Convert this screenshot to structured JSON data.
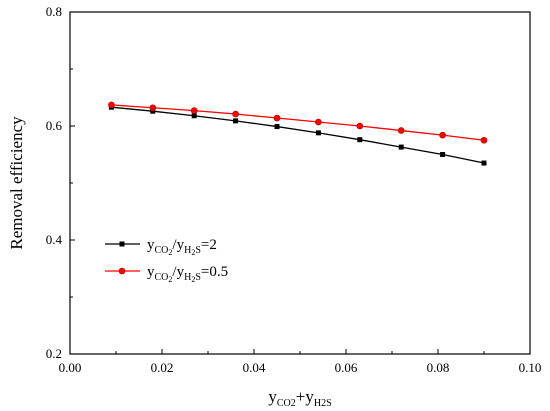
{
  "chart_data": {
    "type": "line",
    "xlabel": {
      "y1": "y",
      "s1": "CO2",
      "plus": "+",
      "y2": "y",
      "s2": "H2S"
    },
    "ylabel": "Removal efficiency",
    "xlim": [
      0.0,
      0.1
    ],
    "ylim": [
      0.2,
      0.8
    ],
    "xticks": [
      "0.00",
      "0.02",
      "0.04",
      "0.06",
      "0.08",
      "0.10"
    ],
    "yticks": [
      "0.2",
      "0.4",
      "0.6",
      "0.8"
    ],
    "x": [
      0.009,
      0.018,
      0.027,
      0.036,
      0.045,
      0.054,
      0.063,
      0.072,
      0.081,
      0.09
    ],
    "series": [
      {
        "name": "yCO2/yH2S=2",
        "legend": {
          "a": "y",
          "a_sub": "CO",
          "a_sub2": "2",
          "slash": "/y",
          "b_sub": "H",
          "b_sub2": "2",
          "b_sub3": "S",
          "eq": "=2"
        },
        "color": "#000000",
        "marker": "square",
        "values": [
          0.633,
          0.626,
          0.618,
          0.609,
          0.599,
          0.588,
          0.576,
          0.563,
          0.55,
          0.535
        ]
      },
      {
        "name": "yCO2/yH2S=0.5",
        "legend": {
          "a": "y",
          "a_sub": "CO",
          "a_sub2": "2",
          "slash": "/y",
          "b_sub": "H",
          "b_sub2": "2",
          "b_sub3": "S",
          "eq": "=0.5"
        },
        "color": "#ff0000",
        "marker": "circle",
        "values": [
          0.637,
          0.632,
          0.627,
          0.621,
          0.614,
          0.607,
          0.6,
          0.592,
          0.584,
          0.575
        ]
      }
    ],
    "grid": false,
    "legend_position": "left-middle"
  }
}
